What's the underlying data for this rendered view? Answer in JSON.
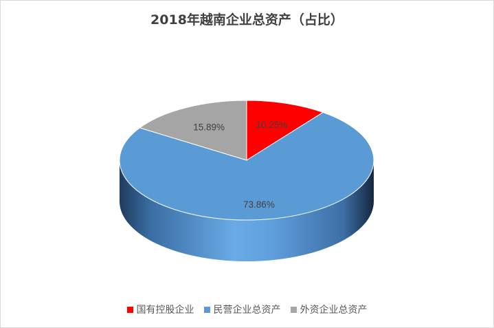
{
  "chart_data": {
    "type": "pie",
    "title": "2018年越南企业总资产（占比）",
    "slices": [
      {
        "label": "国有控股企业",
        "value": 10.25,
        "display": "10.25%",
        "color": "#ff0000"
      },
      {
        "label": "民营企业总资产",
        "value": 73.86,
        "display": "73.86%",
        "color": "#5b9bd5"
      },
      {
        "label": "外资企业总资产",
        "value": 15.89,
        "display": "15.89%",
        "color": "#a5a5a5"
      }
    ],
    "legend_position": "bottom",
    "style": "3d"
  }
}
